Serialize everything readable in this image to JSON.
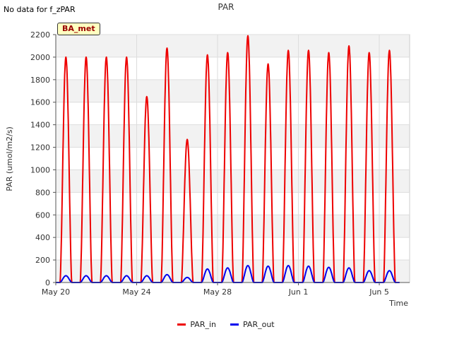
{
  "note": "No data for f_zPAR",
  "badge": "BA_met",
  "colors": {
    "PAR_in": "#ee0000",
    "PAR_out": "#0000ee",
    "band": "#f2f2f2",
    "grid": "#dddddd"
  },
  "chart_data": {
    "type": "line",
    "title": "PAR",
    "xlabel": "Time",
    "ylabel": "PAR (umol/m2/s)",
    "ylim": [
      0,
      2200
    ],
    "yticks": [
      0,
      200,
      400,
      600,
      800,
      1000,
      1200,
      1400,
      1600,
      1800,
      2000,
      2200
    ],
    "xlim_day": [
      0,
      17.5
    ],
    "xticks": [
      {
        "day": 0,
        "label": "May 20"
      },
      {
        "day": 4,
        "label": "May 24"
      },
      {
        "day": 8,
        "label": "May 28"
      },
      {
        "day": 12,
        "label": "Jun 1"
      },
      {
        "day": 16,
        "label": "Jun 5"
      }
    ],
    "daylight_hours": [
      5,
      19
    ],
    "series": [
      {
        "name": "PAR_in",
        "color": "#ee0000",
        "daily_peak": [
          2000,
          2000,
          2000,
          2000,
          1650,
          2080,
          1270,
          2020,
          2040,
          2190,
          1940,
          2060,
          2060,
          2040,
          2100,
          2040,
          2060
        ]
      },
      {
        "name": "PAR_out",
        "color": "#0000ee",
        "daily_peak": [
          60,
          60,
          60,
          60,
          60,
          70,
          45,
          120,
          130,
          150,
          145,
          150,
          145,
          135,
          130,
          105,
          105
        ]
      }
    ],
    "legend": [
      "PAR_in",
      "PAR_out"
    ]
  }
}
